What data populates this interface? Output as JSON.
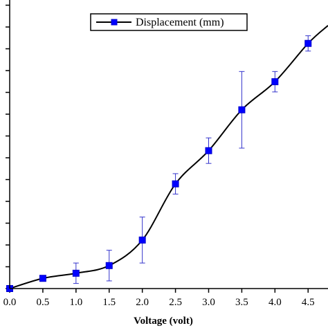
{
  "chart_data": {
    "type": "line",
    "xlabel": "Voltage (volt)",
    "ylabel": "",
    "xlim": [
      0,
      4.8
    ],
    "ylim": [
      0,
      11.3
    ],
    "x_ticks": [
      "0.0",
      "0.5",
      "1.0",
      "1.5",
      "2.0",
      "2.5",
      "3.0",
      "3.5",
      "4.0",
      "4.5"
    ],
    "legend_position": "top-center",
    "grid": false,
    "series": [
      {
        "name": "Displacement (mm)",
        "color": "#0000ff",
        "line_color": "#000000",
        "marker": "square",
        "x": [
          0.0,
          0.5,
          1.0,
          1.5,
          2.0,
          2.5,
          3.0,
          3.5,
          4.0,
          4.5
        ],
        "y": [
          0.0,
          0.4,
          0.6,
          0.9,
          1.9,
          4.1,
          5.4,
          7.0,
          8.1,
          9.6
        ],
        "err": [
          0.0,
          0.05,
          0.4,
          0.6,
          0.9,
          0.4,
          0.5,
          1.5,
          0.4,
          0.3
        ]
      }
    ],
    "curve_end": [
      4.8,
      10.3
    ]
  }
}
